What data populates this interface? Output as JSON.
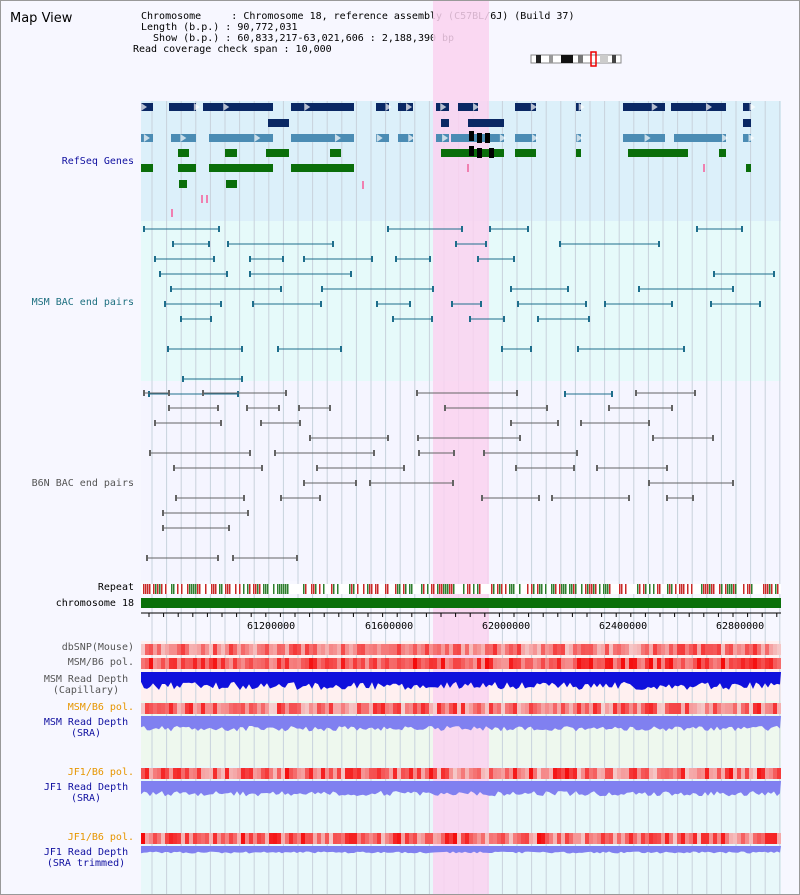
{
  "title": "Map View",
  "info": {
    "chromosome": "Chromosome     : Chromosome 18, reference assembly (C57BL/6J) (Build 37)",
    "length": "Length (b.p.) : 90,772,031",
    "show": "  Show (b.p.) : 60,833,217-63,021,606 : 2,188,390 bp",
    "span": "Read coverage check span : 10,000"
  },
  "tracks": {
    "refseq": "RefSeq Genes",
    "msm_bac": "MSM BAC end pairs",
    "b6n_bac": "B6N BAC end pairs",
    "repeat": "Repeat",
    "chromosome": "chromosome 18",
    "dbsnp": "dbSNP(Mouse)",
    "msm_b6_pol": "MSM/B6 pol.",
    "msm_depth_cap_1": "MSM Read Depth",
    "msm_depth_cap_2": "(Capillary)",
    "msm_b6_pol_2": "MSM/B6 pol.",
    "msm_depth_sra_1": "MSM Read Depth",
    "msm_depth_sra_2": "(SRA)",
    "jf1_b6_pol": "JF1/B6 pol.",
    "jf1_depth_sra_1": "JF1 Read Depth",
    "jf1_depth_sra_2": "(SRA)",
    "jf1_b6_pol_2": "JF1/B6 pol.",
    "jf1_depth_trim_1": "JF1 Read Depth",
    "jf1_depth_trim_2": "(SRA trimmed)"
  },
  "axis": {
    "ticks": [
      "61200000",
      "61600000",
      "62000000",
      "62400000",
      "62800000"
    ]
  },
  "colors": {
    "refseq_bg": "#dcf0fa",
    "msm_bg": "#e6fafa",
    "b6n_bg": "#f5f5ff",
    "highlight": "#fad2f0",
    "navy": "#0a2864",
    "steel": "#4b8cb4",
    "green": "#0a6e0a",
    "teal": "#1e6e8c",
    "gray": "#646464",
    "label_blue": "#1010a0",
    "label_teal": "#1e7080",
    "label_gray": "#555555",
    "label_orange": "#e69600",
    "depth_blue": "#1010dc",
    "depth_light": "#8080f0"
  }
}
